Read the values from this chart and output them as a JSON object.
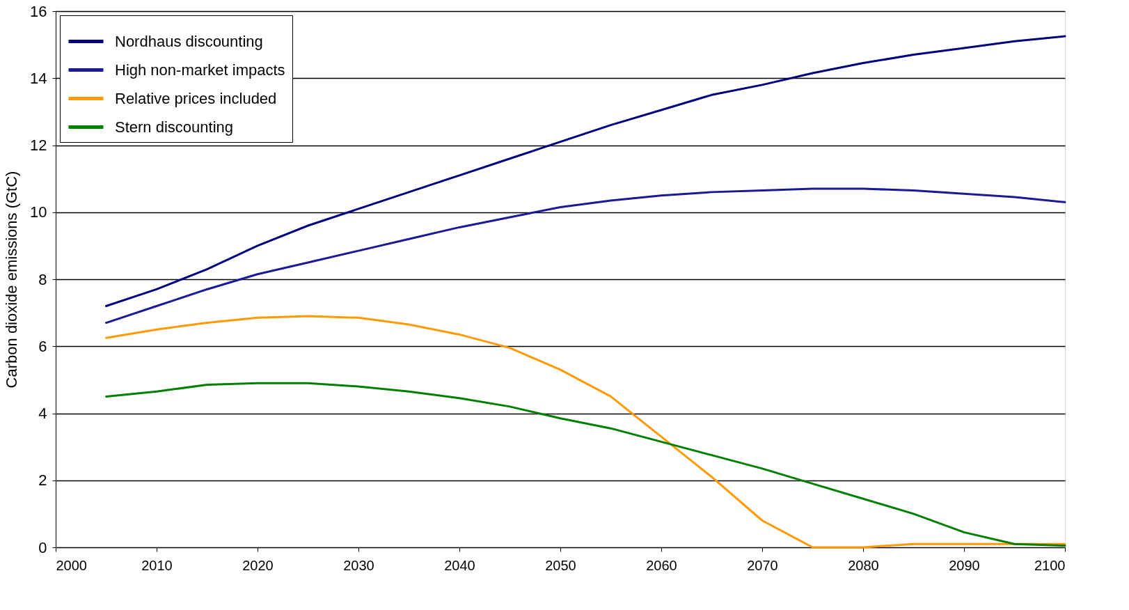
{
  "chart_data": {
    "type": "line",
    "ylabel": "Carbon dioxide emissions (GtC)",
    "x": [
      2005,
      2010,
      2015,
      2020,
      2025,
      2030,
      2035,
      2040,
      2045,
      2050,
      2055,
      2060,
      2065,
      2070,
      2075,
      2080,
      2085,
      2090,
      2095,
      2100
    ],
    "series": [
      {
        "name": "Nordhaus discounting",
        "color": "#000080",
        "values": [
          7.2,
          7.7,
          8.3,
          9.0,
          9.6,
          10.1,
          10.6,
          11.1,
          11.6,
          12.1,
          12.6,
          13.05,
          13.5,
          13.8,
          14.15,
          14.45,
          14.7,
          14.9,
          15.1,
          15.25
        ]
      },
      {
        "name": "High non-market impacts",
        "color": "#1a1a99",
        "values": [
          6.7,
          7.2,
          7.7,
          8.15,
          8.5,
          8.85,
          9.2,
          9.55,
          9.85,
          10.15,
          10.35,
          10.5,
          10.6,
          10.65,
          10.7,
          10.7,
          10.65,
          10.55,
          10.45,
          10.3
        ]
      },
      {
        "name": "Relative prices included",
        "color": "#ff9900",
        "values": [
          6.25,
          6.5,
          6.7,
          6.85,
          6.9,
          6.85,
          6.65,
          6.35,
          5.95,
          5.3,
          4.5,
          3.3,
          2.1,
          0.8,
          0.0,
          0.0,
          0.1,
          0.1,
          0.1,
          0.1
        ]
      },
      {
        "name": "Stern discounting",
        "color": "#008000",
        "values": [
          4.5,
          4.65,
          4.85,
          4.9,
          4.9,
          4.8,
          4.65,
          4.45,
          4.2,
          3.85,
          3.55,
          3.15,
          2.75,
          2.35,
          1.9,
          1.45,
          1.0,
          0.45,
          0.1,
          0.05
        ]
      }
    ],
    "xlim": [
      2000,
      2100
    ],
    "xticks": [
      2000,
      2010,
      2020,
      2030,
      2040,
      2050,
      2060,
      2070,
      2080,
      2090,
      2100
    ],
    "ylim": [
      0,
      16
    ],
    "yticks": [
      0,
      2,
      4,
      6,
      8,
      10,
      12,
      14,
      16
    ],
    "grid": "y",
    "legend": "top left",
    "marker": "none",
    "line_style": "solid"
  }
}
